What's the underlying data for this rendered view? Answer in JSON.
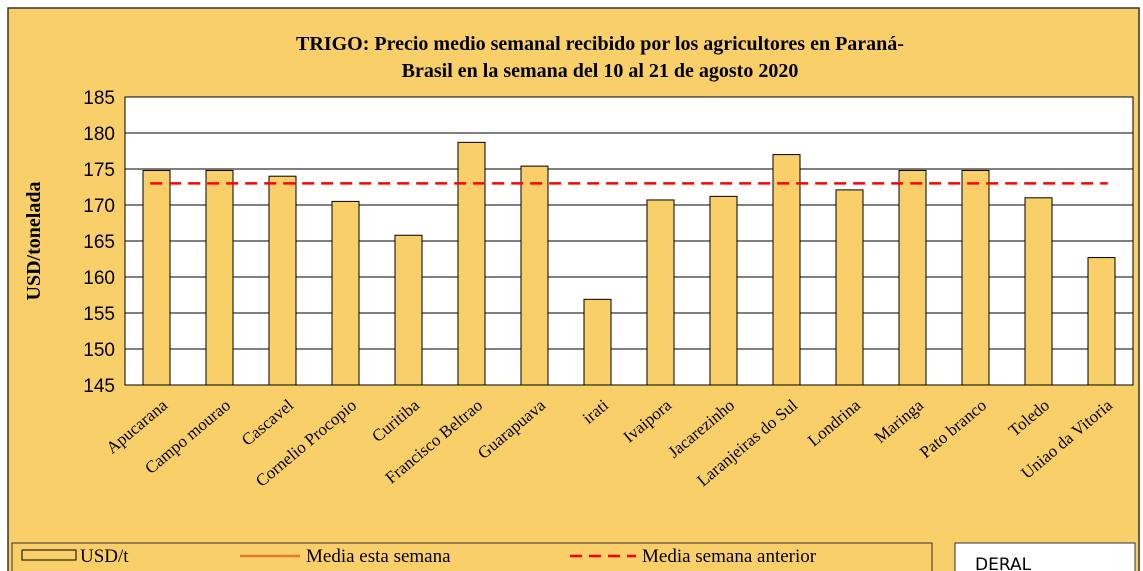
{
  "chart_data": {
    "type": "bar",
    "title": [
      "TRIGO: Precio medio semanal recibido por los agricultores en Paraná-",
      "Brasil en la semana del 10 al 21 de agosto 2020"
    ],
    "y_label": "USD/tonelada",
    "categories": [
      "Apucarana",
      "Campo mourao",
      "Cascavel",
      "Cornelio Procopio",
      "Curitiba",
      "Francisco Beltrao",
      "Guarapuava",
      "irati",
      "Ivaipora",
      "Jacarezinho",
      "Laranjeiras do Sul",
      "Londrina",
      "Maringa",
      "Pato branco",
      "Toledo",
      "Uniao da Vitoria"
    ],
    "series": [
      {
        "name": "USD/t",
        "color": "#f9cf6a",
        "values": [
          174.8,
          174.8,
          174.0,
          170.5,
          165.8,
          178.7,
          175.4,
          156.9,
          170.7,
          171.2,
          177.0,
          172.1,
          174.8,
          174.8,
          171.0,
          162.7
        ]
      }
    ],
    "lines": [
      {
        "name": "Media esta semana",
        "color": "#e07b30"
      },
      {
        "name": "Media semana anterior",
        "color": "#ff0000",
        "value": 173
      }
    ],
    "ylim": [
      145,
      185
    ],
    "yticks": [
      145,
      150,
      155,
      160,
      165,
      170,
      175,
      180,
      185
    ],
    "grid": true,
    "source": "DERAL"
  }
}
